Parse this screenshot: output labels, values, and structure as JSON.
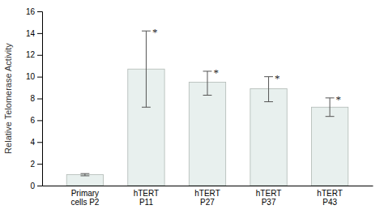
{
  "chart_data": {
    "type": "bar",
    "categories": [
      "Primary\ncells P2",
      "hTERT\nP11",
      "hTERT\nP27",
      "hTERT\nP37",
      "hTERT\nP43"
    ],
    "values": [
      1.0,
      10.7,
      9.5,
      8.9,
      7.2
    ],
    "error_low": [
      0.1,
      3.5,
      1.2,
      1.2,
      0.85
    ],
    "error_high": [
      0.1,
      3.5,
      1.0,
      1.1,
      0.85
    ],
    "annotations": [
      null,
      "*",
      "*",
      "*",
      "*"
    ],
    "color": "#e8f0ee",
    "ylabel": "Relative Telomerase Activity",
    "ylim": [
      0,
      16
    ],
    "yticks": [
      0,
      2,
      4,
      6,
      8,
      10,
      12,
      14,
      16
    ],
    "grid": false
  }
}
